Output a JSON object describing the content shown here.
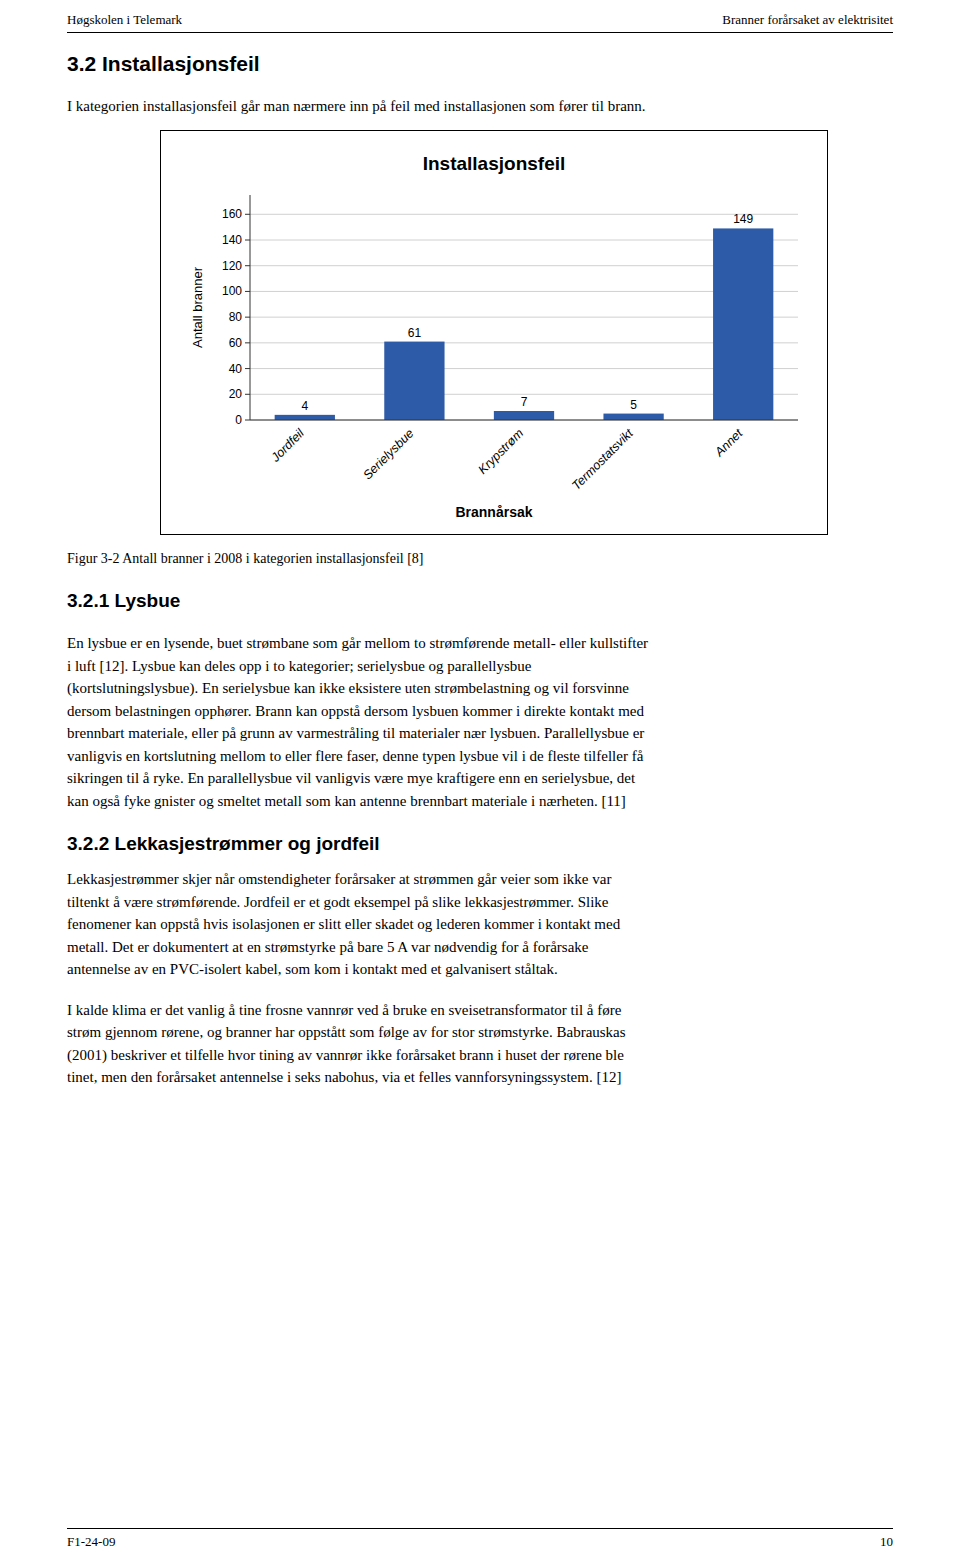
{
  "header_left": "Høgskolen i Telemark",
  "header_right": "Branner forårsaket av elektrisitet",
  "section_title": "3.2  Installasjonsfeil",
  "intro_text": "I kategorien installasjonsfeil går man nærmere inn på feil med installasjonen som fører til brann.",
  "chart_data": {
    "type": "bar",
    "title": "Installasjonsfeil",
    "categories": [
      "Jordfeil",
      "Serielysbue",
      "Krypstrøm",
      "Termostatsvikt",
      "Annet"
    ],
    "values": [
      4,
      61,
      7,
      5,
      149
    ],
    "color": "#2E5BA8",
    "ylabel": "Antall branner",
    "xlabel": "Brannårsak",
    "ylim": [
      0,
      175
    ],
    "yticks": [
      0,
      20,
      40,
      60,
      80,
      100,
      120,
      140,
      160
    ],
    "grid": true,
    "data_labels": true
  },
  "figure_caption": "Figur 3-2 Antall branner i 2008 i kategorien installasjonsfeil [8]",
  "subsection1_title": "3.2.1 Lysbue",
  "para1_lines": [
    "En lysbue er en lysende, buet strømbane som går mellom to strømførende metall- eller kullstifter",
    "i luft [12]. Lysbue kan deles opp i to kategorier; serielysbue og parallellysbue",
    "(kortslutningslysbue). En serielysbue kan ikke eksistere uten strømbelastning og vil forsvinne",
    "dersom belastningen opphører. Brann kan oppstå dersom lysbuen kommer i direkte kontakt med",
    "brennbart materiale, eller på grunn av varmestråling til materialer nær lysbuen. Parallellysbue er",
    "vanligvis en kortslutning mellom to eller flere faser, denne typen lysbue vil i de fleste tilfeller få",
    "sikringen til å ryke. En parallellysbue vil vanligvis være mye kraftigere enn en serielysbue, det",
    "kan også fyke gnister og smeltet metall som kan antenne brennbart materiale i nærheten. [11]"
  ],
  "subsection2_title": "3.2.2 Lekkasjestrømmer og jordfeil",
  "para2_lines": [
    "Lekkasjestrømmer skjer når omstendigheter forårsaker at strømmen går veier som ikke var",
    "tiltenkt å være strømførende. Jordfeil er et godt eksempel på slike lekkasjestrømmer. Slike",
    "fenomener kan oppstå hvis isolasjonen er slitt eller skadet og lederen kommer i kontakt med",
    "metall. Det er dokumentert at en strømstyrke på bare 5 A var nødvendig for å forårsake",
    "antennelse av en PVC-isolert kabel, som kom i kontakt med et galvanisert ståltak."
  ],
  "para3_lines": [
    "I kalde klima er det vanlig å tine frosne vannrør ved å bruke en sveisetransformator til å føre",
    "strøm gjennom rørene, og branner har oppstått som følge av for stor strømstyrke. Babrauskas",
    "(2001) beskriver et tilfelle hvor tining av vannrør ikke forårsaket brann i huset der rørene ble",
    "tinet, men den forårsaket antennelse i seks nabohus, via et felles vannforsyningssystem. [12]"
  ],
  "footer_left": "F1-24-09",
  "footer_right": "10"
}
